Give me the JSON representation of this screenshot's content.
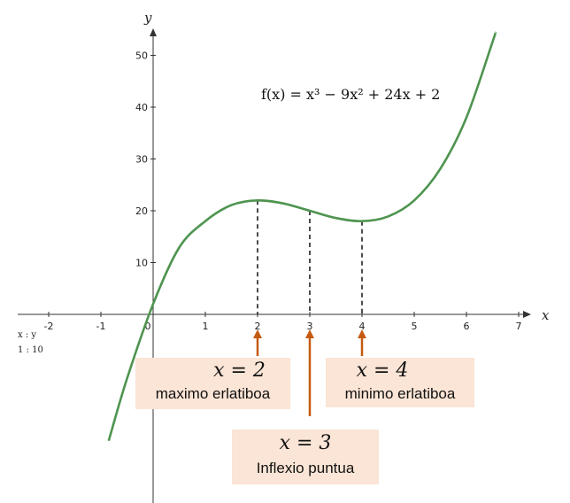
{
  "chart_data": {
    "type": "line",
    "function": "f(x) = x^3 - 9x^2 + 24x + 2",
    "formula_label": "f(x) = x³ − 9x² + 24x + 2",
    "xlabel": "x",
    "ylabel": "y",
    "scale_note": [
      "x : y",
      "1 : 10"
    ],
    "xlim": [
      -2.5,
      7.4
    ],
    "ylim": [
      -25,
      53
    ],
    "x_ticks": [
      -2,
      -1,
      0,
      1,
      2,
      3,
      4,
      5,
      6,
      7
    ],
    "y_ticks": [
      10,
      20,
      30,
      40,
      50
    ],
    "series": [
      {
        "color": "#4e944f",
        "x": [
          -0.85,
          -0.5,
          0,
          0.5,
          1,
          1.5,
          2,
          2.5,
          3,
          3.5,
          4,
          4.5,
          5,
          5.5,
          6,
          6.5,
          6.55
        ],
        "y": [
          -24.4,
          -12.4,
          2,
          12.9,
          18,
          21.1,
          22,
          21.4,
          20,
          18.6,
          18,
          18.9,
          22,
          28.1,
          38,
          52.6,
          54.3
        ]
      }
    ],
    "reference_lines": [
      {
        "x": 2,
        "y": 22
      },
      {
        "x": 3,
        "y": 20
      },
      {
        "x": 4,
        "y": 18
      }
    ],
    "annotations": [
      {
        "id": "max",
        "x": 2,
        "math": "x = 2",
        "text": "maximo erlatiboa"
      },
      {
        "id": "inflection",
        "x": 3,
        "math": "x = 3",
        "text": "Inflexio puntua"
      },
      {
        "id": "min",
        "x": 4,
        "math": "x = 4",
        "text": "minimo erlatiboa"
      }
    ],
    "colors": {
      "curve": "#4e944f",
      "arrow": "#c55a11",
      "note_background": "#fbe5d6"
    },
    "grid": false
  }
}
